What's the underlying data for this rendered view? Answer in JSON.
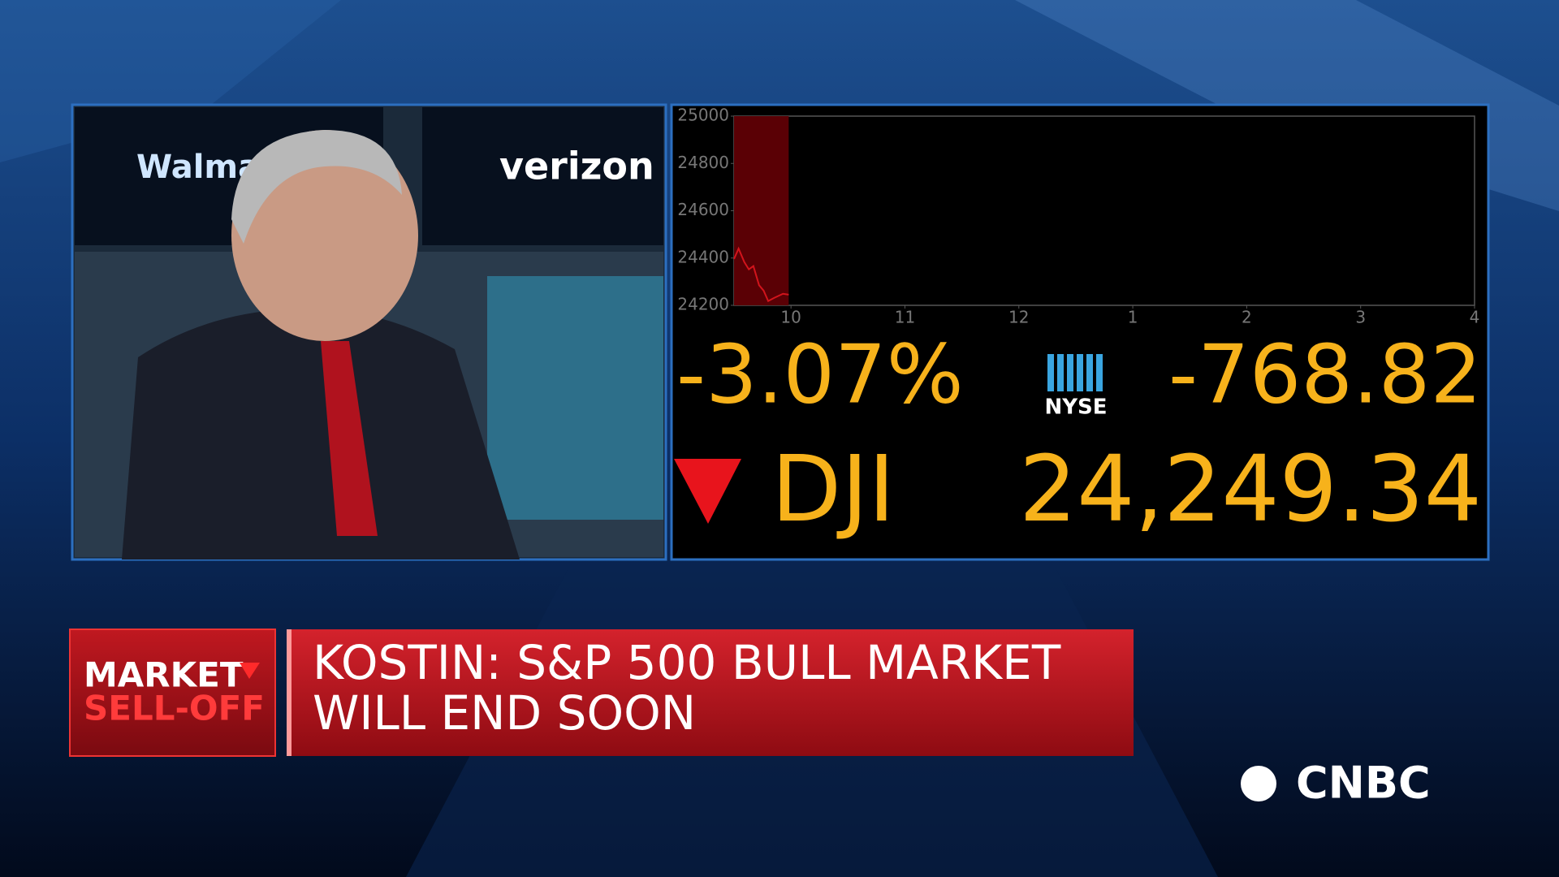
{
  "chart_data": {
    "type": "line",
    "x": [
      9.5,
      9.54,
      9.59,
      9.63,
      9.67,
      9.72,
      9.76,
      9.8,
      9.85,
      9.89,
      9.93,
      9.98
    ],
    "series": [
      {
        "color": "#d2141c",
        "values": [
          24396,
          24440,
          24383,
          24352,
          24366,
          24285,
          24262,
          24218,
          24231,
          24240,
          24249,
          24245
        ]
      }
    ],
    "xlim": [
      9.5,
      16
    ],
    "ylim": [
      24200,
      25000
    ],
    "xticks": [
      10,
      11,
      12,
      {
        "value": 13,
        "label": "1"
      },
      {
        "value": 14,
        "label": "2"
      },
      {
        "value": 15,
        "label": "3"
      },
      {
        "value": 16,
        "label": "4"
      }
    ],
    "yticks": [
      24200,
      24400,
      24600,
      24800,
      25000
    ]
  },
  "ticker": {
    "change_pct": "-3.07%",
    "exchange": "NYSE",
    "change_pts": "-768.82",
    "symbol": "DJI",
    "price": "24,249.34"
  },
  "screens": [
    "Walmart",
    "verizon"
  ],
  "banner": {
    "tag": [
      "MARKET",
      "SELL-OFF"
    ],
    "headline": [
      "KOSTIN: S&P 500 BULL MARKET",
      "WILL END SOON"
    ]
  },
  "network": "CNBC"
}
